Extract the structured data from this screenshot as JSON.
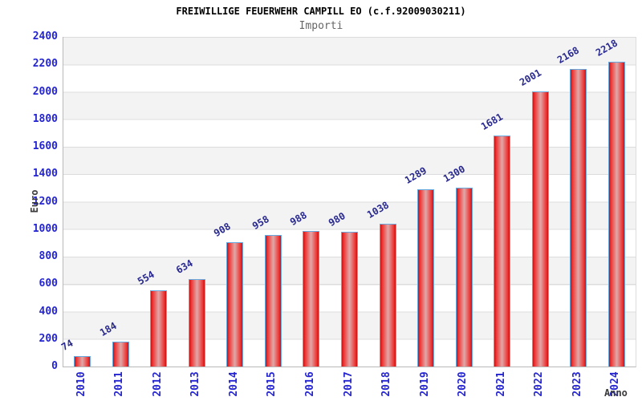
{
  "chart_data": {
    "type": "bar",
    "title": "FREIWILLIGE FEUERWEHR CAMPILL EO (c.f.92009030211)",
    "subtitle": "Importi",
    "xlabel": "Anno",
    "ylabel": "Euro",
    "categories": [
      "2010",
      "2011",
      "2012",
      "2013",
      "2014",
      "2015",
      "2016",
      "2017",
      "2018",
      "2019",
      "2020",
      "2021",
      "2022",
      "2023",
      "2024"
    ],
    "values": [
      74,
      184,
      554,
      634,
      908,
      958,
      988,
      980,
      1038,
      1289,
      1300,
      1681,
      2001,
      2168,
      2218
    ],
    "ylim": [
      0,
      2400
    ],
    "ytick_step": 200,
    "grid": true,
    "legend": "none",
    "band_fill": "alternating 200-unit horizontal bands",
    "colors": {
      "title": "#000000",
      "subtitle": "#666666",
      "tick_label": "#2525cf",
      "value_label": "#28288f",
      "axis_title": "#3a3a3a",
      "bar_dark": "#c81414",
      "bar_main": "#ee3333",
      "bar_light": "#e0a8a8",
      "bar_border": "#66aadf",
      "band_gray": "#f3f3f3",
      "gridline": "#dcdcdc",
      "axis_line": "#b9b9b9"
    }
  }
}
